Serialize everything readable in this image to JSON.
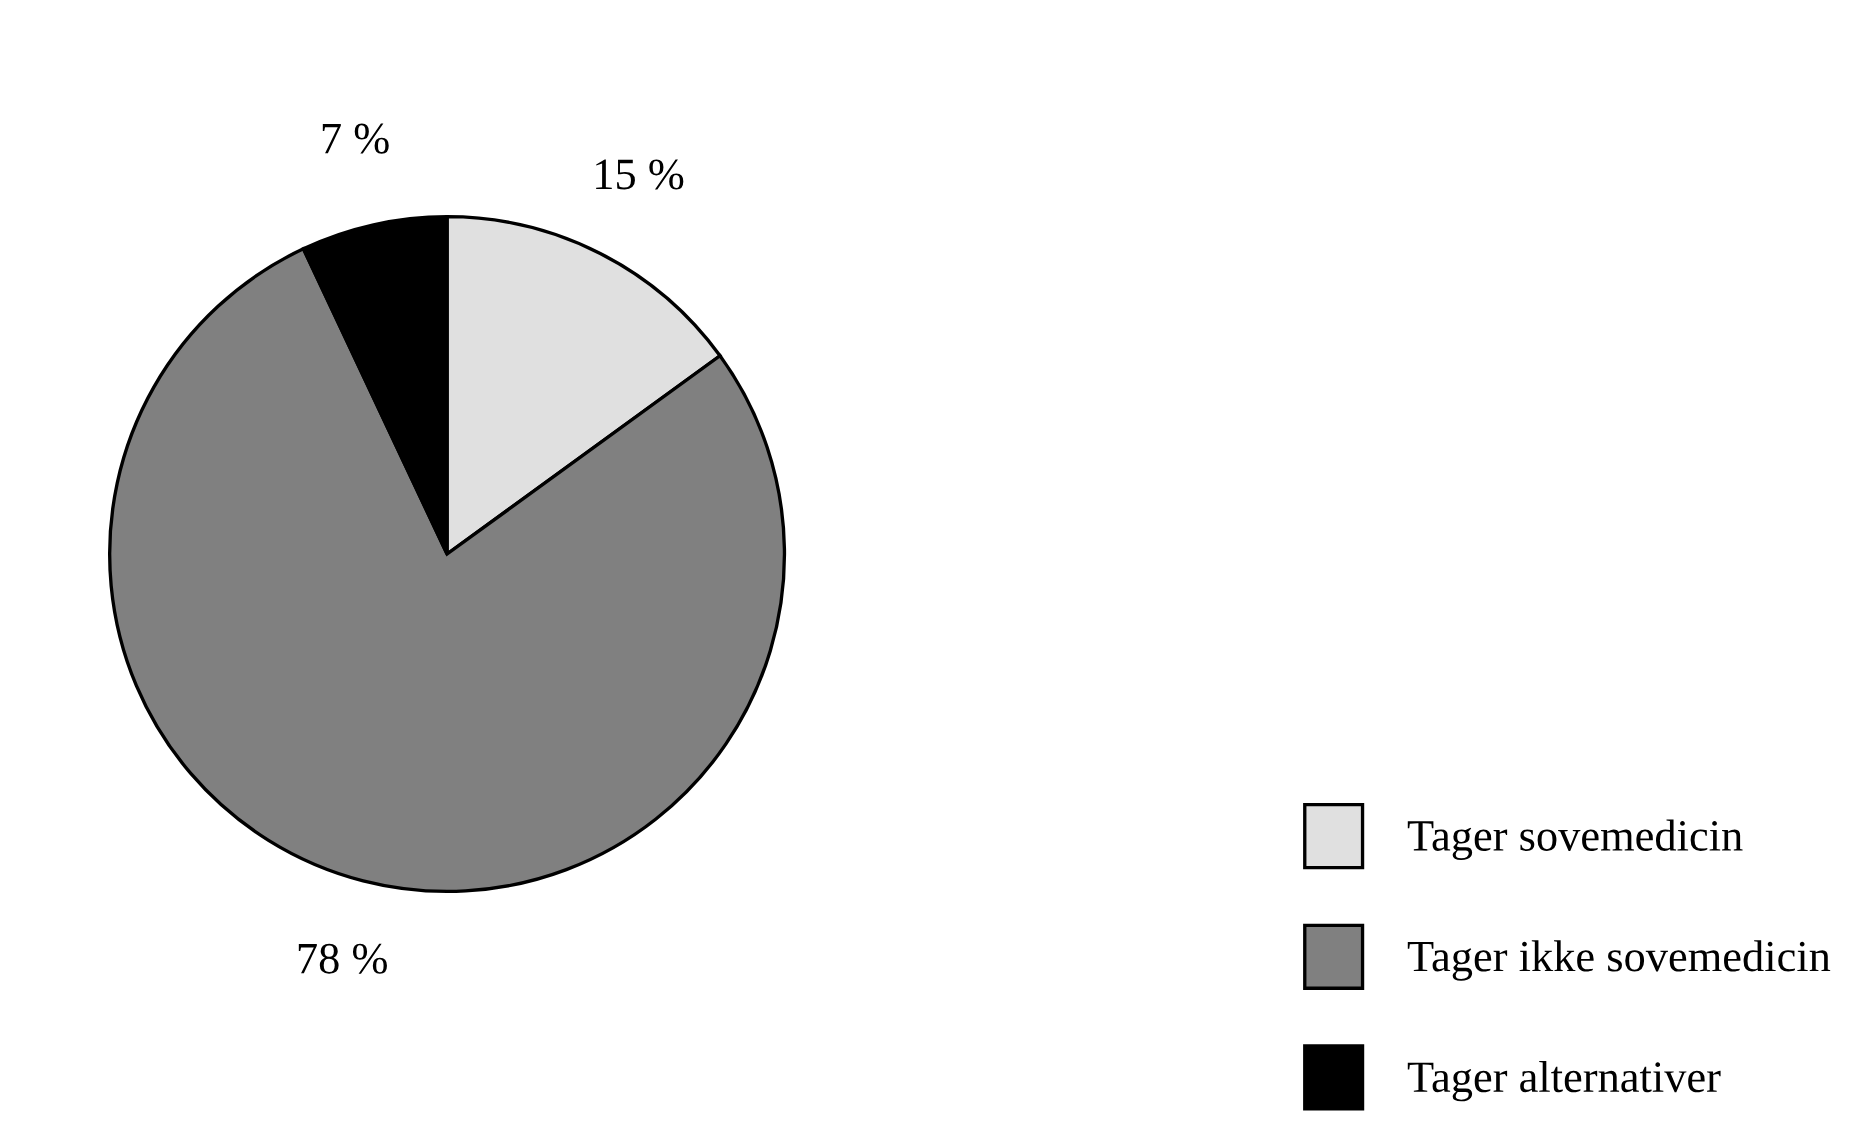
{
  "chart_data": {
    "type": "pie",
    "categories": [
      "Tager sovemedicin",
      "Tager ikke sovemedicin",
      "Tager alternativer"
    ],
    "values": [
      15,
      78,
      7
    ],
    "colors": [
      "#e0e0e0",
      "#808080",
      "#000000"
    ],
    "value_labels": [
      "15 %",
      "78 %",
      "7 %"
    ],
    "legend": "bottom right"
  }
}
